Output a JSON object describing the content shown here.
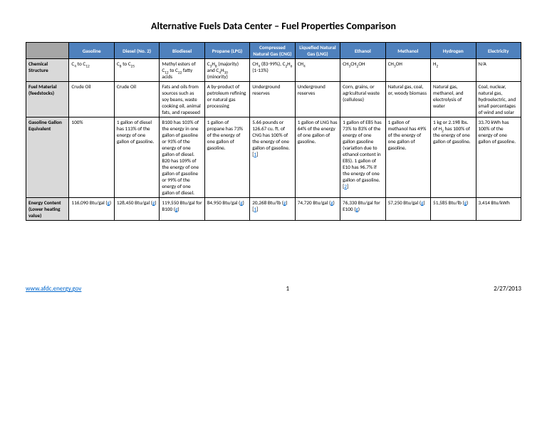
{
  "title": "Alternative Fuels Data Center – Fuel Properties Comparison",
  "colors": {
    "header_bg": "#4f81bd",
    "corner_bg": "#a6a6a6",
    "rowhead_bg": "#d9d9d9",
    "link": "#0066cc",
    "border": "#000000",
    "text": "#000000",
    "header_text": "#ffffff"
  },
  "columns": [
    "Gasoline",
    "Diesel (No. 2)",
    "Biodiesel",
    "Propane (LPG)",
    "Compressed Natural Gas (CNG)",
    "Liquefied Natural Gas (LNG)",
    "Ethanol",
    "Methanol",
    "Hydrogen",
    "Electricity"
  ],
  "col_width_rowhead": 60,
  "col_width_data": 63,
  "rows": [
    {
      "label": "Chemical Structure",
      "cells": [
        "C<sub>4</sub> to C<sub>12</sub>",
        "C<sub>8</sub> to C<sub>25</sub>",
        "Methyl esters of C<sub>12</sub> to C<sub>22</sub> fatty acids",
        "C<sub>3</sub>H<sub>8</sub> (majority) and C<sub>4</sub>H<sub>10</sub> (minority)",
        "CH<sub>4</sub> (83-99%), C<sub>2</sub>H<sub>6</sub> (1-13%)",
        "CH<sub>4</sub>",
        "CH<sub>3</sub>CH<sub>2</sub>OH",
        "CH<sub>3</sub>OH",
        "H<sub>2</sub>",
        "N/A"
      ]
    },
    {
      "label": "Fuel Material (feedstocks)",
      "cells": [
        "Crude Oil",
        "Crude Oil",
        "Fats and oils from sources such as soy beans, waste cooking oil, animal fats, and rapeseed",
        "A by-product of petroleum refining or natural gas processing",
        "Underground reserves",
        "Underground reserves",
        "Corn, grains, or agricultural waste (cellulose)",
        "Natural gas, coal, or, woody biomass",
        "Natural gas, methanol, and electrolysis of water",
        "Coal, nuclear, natural gas, hydroelectric, and small percentages of wind and solar"
      ]
    },
    {
      "label": "Gasoline Gallon Equivalent",
      "cells": [
        "100%",
        "1 gallon of diesel has 113% of the energy of one gallon of gasoline.",
        "B100 has 103% of the energy in one gallon of gasoline or 93% of the energy of one gallon of diesel. B20 has 109% of the energy of one gallon of gasoline or 99% of the energy of one gallon of diesel.",
        "1 gallon of propane has 73% of the energy of one gallon of gasoline.",
        "5.66 pounds or 126.67 cu. ft. of CNG has 100% of the energy of one gallon of gasoline. [<span class='lnk'>1</span>]",
        "1 gallon of LNG has 64% of the energy of one gallon of gasoline.",
        "1 gallon of E85 has 73% to 83% of the energy of one gallon gasoline (variation due to ethanol content in E85). 1 gallon of E10 has 96.7% if the energy of one gallon of gasoline. [<span class='lnk'>2</span>]",
        "1 gallon of methanol has 49% of the energy of one gallon of gasoline.",
        "1 kg or 2.198 lbs. of H<sub>2</sub> has 100% of the energy of one gallon of gasoline.",
        "33.70 kWh has 100% of the energy of one gallon of gasoline."
      ]
    },
    {
      "label": "Energy Content (Lower heating value)",
      "cells": [
        "116,090 Btu/gal (<span class='lnk'>g</span>)",
        "128,450 Btu/gal (<span class='lnk'>g</span>)",
        "119,550 Btu/gal for B100 (<span class='lnk'>g</span>)",
        "84,950 Btu/gal (<span class='lnk'>g</span>)",
        "20,268 Btu/lb (<span class='lnk'>g</span>) [<span class='lnk'>1</span>]",
        "74,720 Btu/gal (<span class='lnk'>g</span>)",
        "76,330 Btu/gal for E100 (<span class='lnk'>g</span>)",
        "57,250 Btu/gal (<span class='lnk'>g</span>)",
        "51,585 Btu/lb (<span class='lnk'>g</span>)",
        "3,414 Btu/kWh"
      ]
    }
  ],
  "footer": {
    "url": "www.afdc.energy.gov",
    "page": "1",
    "date": "2/27/2013"
  }
}
